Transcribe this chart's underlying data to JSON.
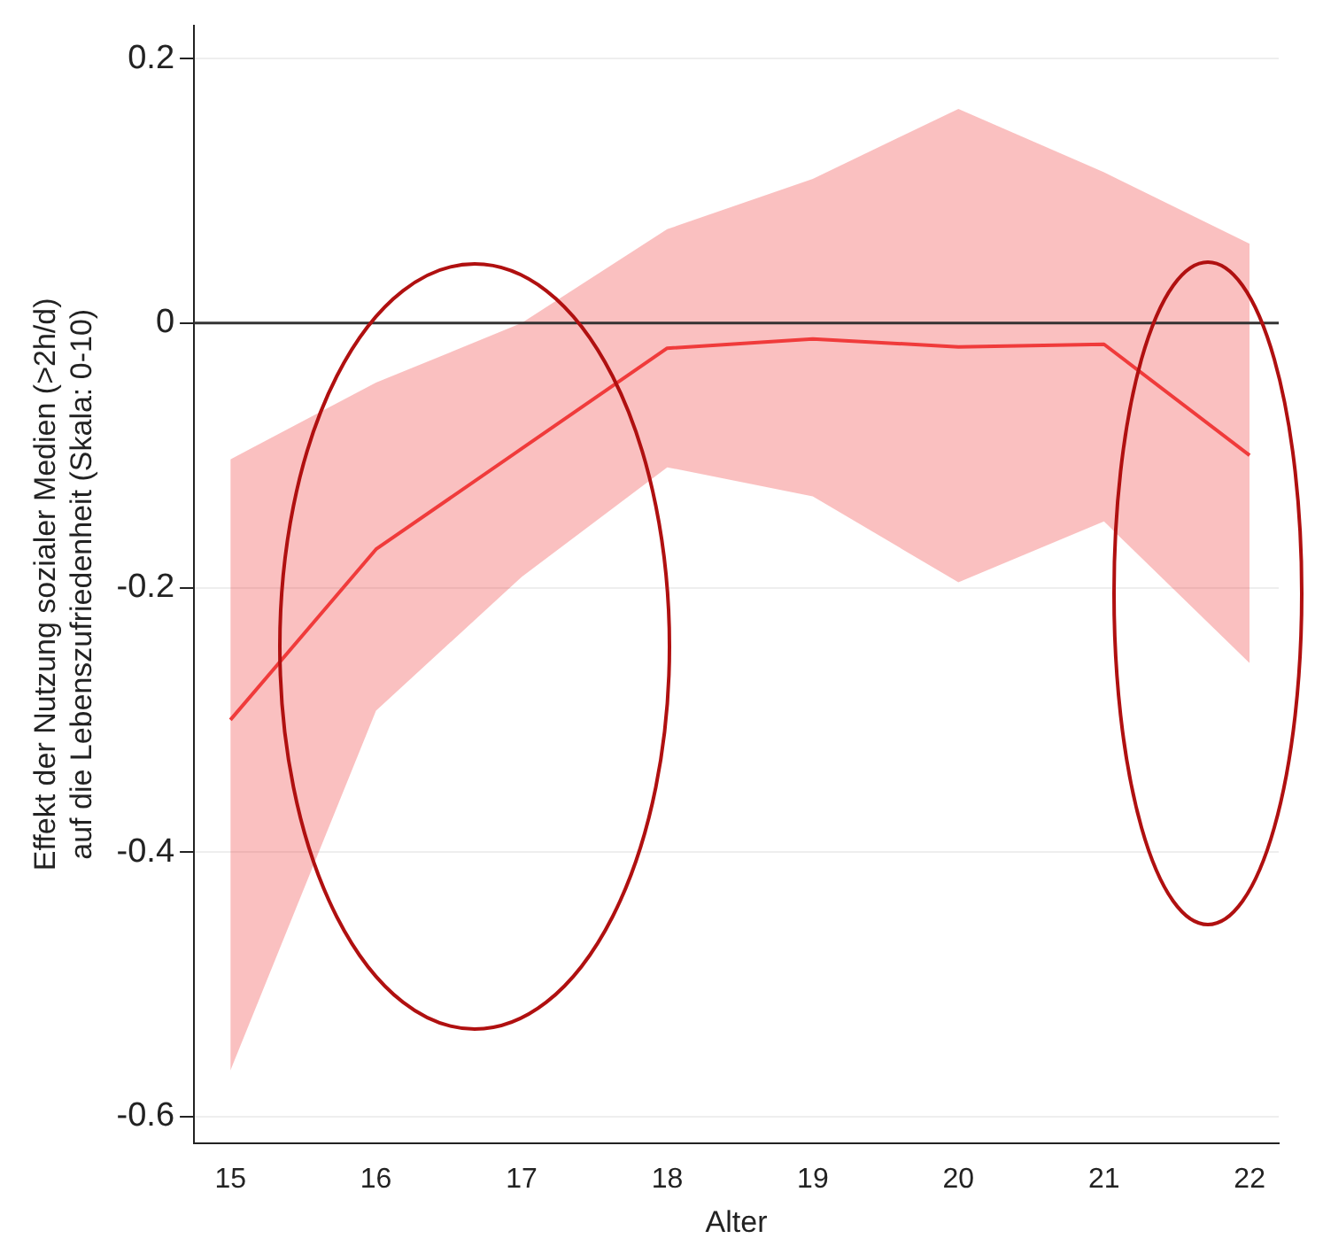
{
  "chart_data": {
    "type": "line",
    "xlabel": "Alter",
    "ylabel": "Effekt der Nutzung sozialer Medien (>2h/d)\nauf die Lebenszufriedenheit (Skala: 0-10)",
    "x": [
      15,
      16,
      17,
      18,
      19,
      20,
      21,
      22
    ],
    "series": [
      {
        "color": "#f03c3c",
        "values": [
          -0.3,
          -0.171,
          -0.095,
          -0.019,
          -0.012,
          -0.018,
          -0.016,
          -0.1
        ],
        "lower": [
          -0.565,
          -0.293,
          -0.192,
          -0.109,
          -0.131,
          -0.196,
          -0.15,
          -0.257
        ],
        "upper": [
          -0.103,
          -0.045,
          0.0,
          0.071,
          0.109,
          0.162,
          0.114,
          0.06
        ]
      }
    ],
    "xlim": [
      14.75,
      22.2
    ],
    "xticks": [
      15,
      16,
      17,
      18,
      19,
      20,
      21,
      22
    ],
    "ylim": [
      -0.62,
      0.225
    ],
    "yticks": [
      {
        "value": -0.6,
        "label": "-0.6"
      },
      {
        "value": -0.4,
        "label": "-0.4"
      },
      {
        "value": -0.2,
        "label": "-0.2"
      },
      {
        "value": 0,
        "label": "0"
      },
      {
        "value": 0.2,
        "label": "0.2"
      }
    ],
    "ref_lines": [
      {
        "axis": "y",
        "value": 0,
        "color": "#333333"
      }
    ],
    "grid": "y",
    "legend": false,
    "marker": "none",
    "line_style": "solid"
  }
}
